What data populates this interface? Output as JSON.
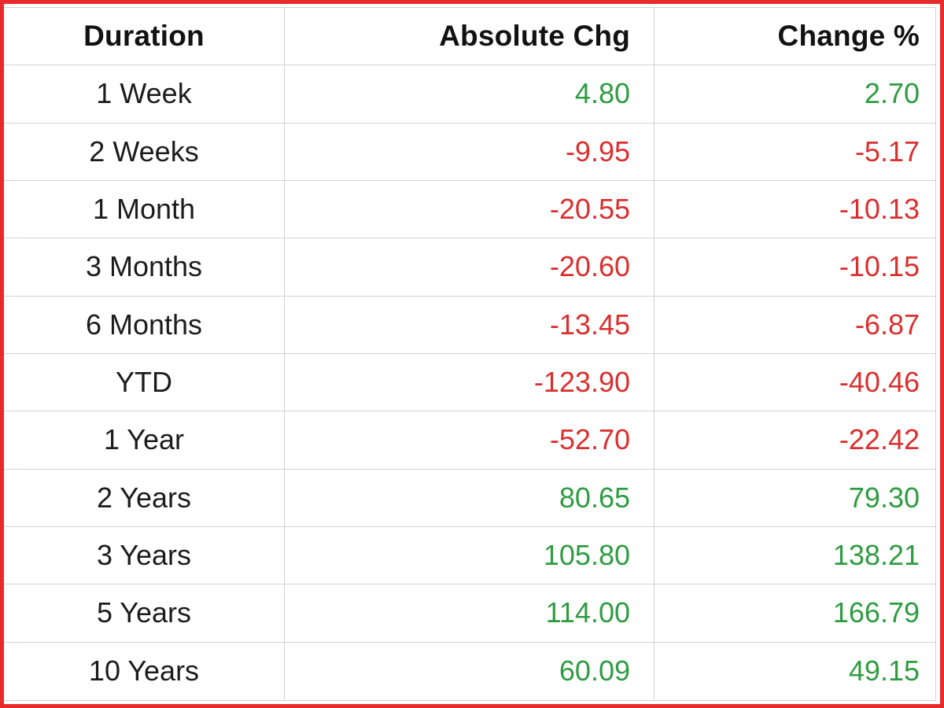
{
  "frame": {
    "border_color": "#e92a2d"
  },
  "table": {
    "columns": [
      {
        "label": "Duration"
      },
      {
        "label": "Absolute Chg"
      },
      {
        "label": "Change %"
      }
    ],
    "rows": [
      {
        "duration": "1 Week",
        "abs": "4.80",
        "pct": "2.70"
      },
      {
        "duration": "2 Weeks",
        "abs": "-9.95",
        "pct": "-5.17"
      },
      {
        "duration": "1 Month",
        "abs": "-20.55",
        "pct": "-10.13"
      },
      {
        "duration": "3 Months",
        "abs": "-20.60",
        "pct": "-10.15"
      },
      {
        "duration": "6 Months",
        "abs": "-13.45",
        "pct": "-6.87"
      },
      {
        "duration": "YTD",
        "abs": "-123.90",
        "pct": "-40.46"
      },
      {
        "duration": "1 Year",
        "abs": "-52.70",
        "pct": "-22.42"
      },
      {
        "duration": "2 Years",
        "abs": "80.65",
        "pct": "79.30"
      },
      {
        "duration": "3 Years",
        "abs": "105.80",
        "pct": "138.21"
      },
      {
        "duration": "5 Years",
        "abs": "114.00",
        "pct": "166.79"
      },
      {
        "duration": "10 Years",
        "abs": "60.09",
        "pct": "49.15"
      }
    ],
    "colors": {
      "positive": "#2e9c41",
      "negative": "#da2f2e",
      "header_text": "#121212",
      "row_text": "#1c1c1c",
      "grid": "#d2d2d2"
    }
  },
  "chart_data": {
    "type": "table",
    "title": "",
    "columns": [
      "Duration",
      "Absolute Chg",
      "Change %"
    ],
    "rows": [
      {
        "duration": "1 Week",
        "absolute_chg": 4.8,
        "change_pct": 2.7
      },
      {
        "duration": "2 Weeks",
        "absolute_chg": -9.95,
        "change_pct": -5.17
      },
      {
        "duration": "1 Month",
        "absolute_chg": -20.55,
        "change_pct": -10.13
      },
      {
        "duration": "3 Months",
        "absolute_chg": -20.6,
        "change_pct": -10.15
      },
      {
        "duration": "6 Months",
        "absolute_chg": -13.45,
        "change_pct": -6.87
      },
      {
        "duration": "YTD",
        "absolute_chg": -123.9,
        "change_pct": -40.46
      },
      {
        "duration": "1 Year",
        "absolute_chg": -52.7,
        "change_pct": -22.42
      },
      {
        "duration": "2 Years",
        "absolute_chg": 80.65,
        "change_pct": 79.3
      },
      {
        "duration": "3 Years",
        "absolute_chg": 105.8,
        "change_pct": 138.21
      },
      {
        "duration": "5 Years",
        "absolute_chg": 114.0,
        "change_pct": 166.79
      },
      {
        "duration": "10 Years",
        "absolute_chg": 60.09,
        "change_pct": 49.15
      }
    ],
    "value_color_rule": "negative values red, positive values green"
  }
}
